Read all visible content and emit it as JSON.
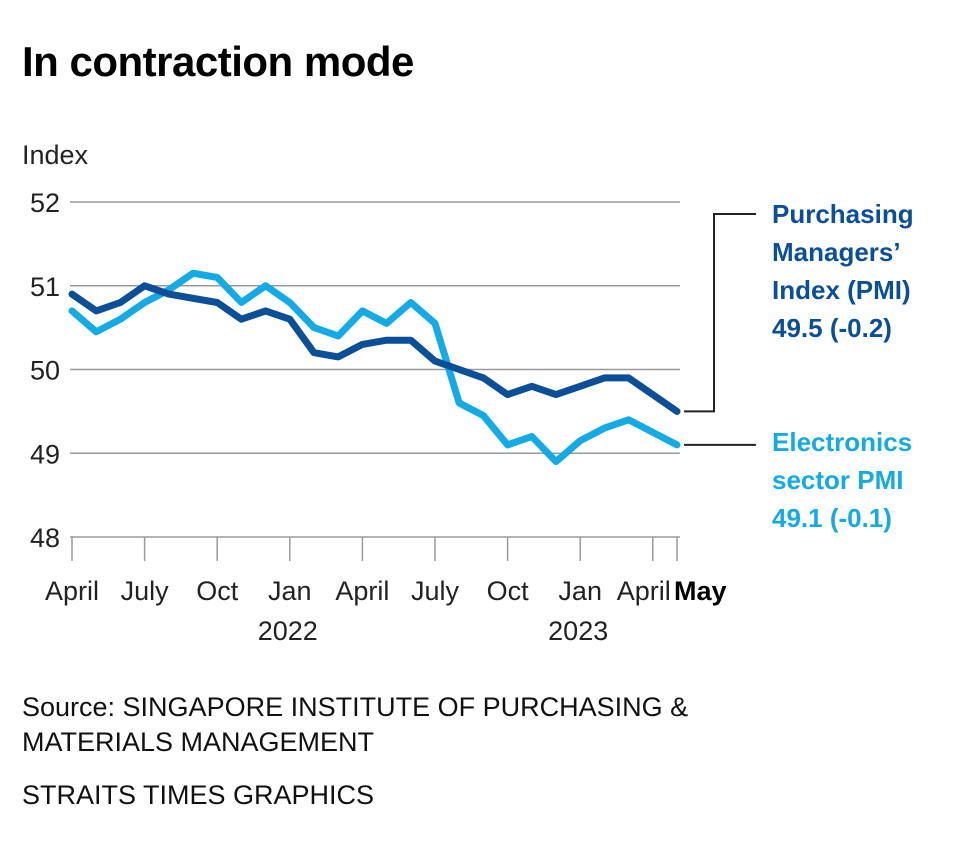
{
  "title": "In contraction mode",
  "colors": {
    "pmi": "#0a4f98",
    "electronics": "#14aae6",
    "grid": "#9a9a9a",
    "connector": "#222222"
  },
  "chart_data": {
    "type": "line",
    "title": "In contraction mode",
    "ylabel": "Index",
    "xlabel": "",
    "ylim": [
      48,
      52
    ],
    "yticks": [
      48,
      49,
      50,
      51,
      52
    ],
    "grid": true,
    "x": [
      "2021-04",
      "2021-05",
      "2021-06",
      "2021-07",
      "2021-08",
      "2021-09",
      "2021-10",
      "2021-11",
      "2021-12",
      "2022-01",
      "2022-02",
      "2022-03",
      "2022-04",
      "2022-05",
      "2022-06",
      "2022-07",
      "2022-08",
      "2022-09",
      "2022-10",
      "2022-11",
      "2022-12",
      "2023-01",
      "2023-02",
      "2023-03",
      "2023-04",
      "2023-05"
    ],
    "xticks": [
      {
        "month_index": 0,
        "label": "April",
        "bold": false
      },
      {
        "month_index": 3,
        "label": "July",
        "bold": false
      },
      {
        "month_index": 6,
        "label": "Oct",
        "bold": false
      },
      {
        "month_index": 9,
        "label": "Jan",
        "bold": false
      },
      {
        "month_index": 12,
        "label": "April",
        "bold": false
      },
      {
        "month_index": 15,
        "label": "July",
        "bold": false
      },
      {
        "month_index": 18,
        "label": "Oct",
        "bold": false
      },
      {
        "month_index": 21,
        "label": "Jan",
        "bold": false
      },
      {
        "month_index": 24,
        "label": "April",
        "bold": false
      },
      {
        "month_index": 25,
        "label": "May",
        "bold": true
      }
    ],
    "year_labels": [
      {
        "month_index": 9,
        "label": "2022"
      },
      {
        "month_index": 21,
        "label": "2023"
      }
    ],
    "series": [
      {
        "name": "Purchasing Managers' Index (PMI)",
        "key": "pmi",
        "values": [
          50.9,
          50.7,
          50.8,
          51.0,
          50.9,
          50.85,
          50.8,
          50.6,
          50.7,
          50.6,
          50.2,
          50.15,
          50.3,
          50.35,
          50.35,
          50.1,
          50.0,
          49.9,
          49.7,
          49.8,
          49.7,
          49.8,
          49.9,
          49.9,
          49.7,
          49.5
        ],
        "label_lines": [
          "Purchasing",
          "Managers’",
          "Index (PMI)",
          "49.5 (-0.2)"
        ]
      },
      {
        "name": "Electronics sector PMI",
        "key": "electronics",
        "values": [
          50.7,
          50.45,
          50.6,
          50.8,
          50.95,
          51.15,
          51.1,
          50.8,
          51.0,
          50.8,
          50.5,
          50.4,
          50.7,
          50.55,
          50.8,
          50.55,
          49.6,
          49.45,
          49.1,
          49.2,
          48.9,
          49.15,
          49.3,
          49.4,
          49.25,
          49.1
        ],
        "label_lines": [
          "Electronics",
          "sector PMI",
          "49.1 (-0.1)"
        ]
      }
    ]
  },
  "footer": {
    "source": "Source: SINGAPORE INSTITUTE OF PURCHASING & MATERIALS MANAGEMENT",
    "credit": "STRAITS TIMES GRAPHICS"
  }
}
